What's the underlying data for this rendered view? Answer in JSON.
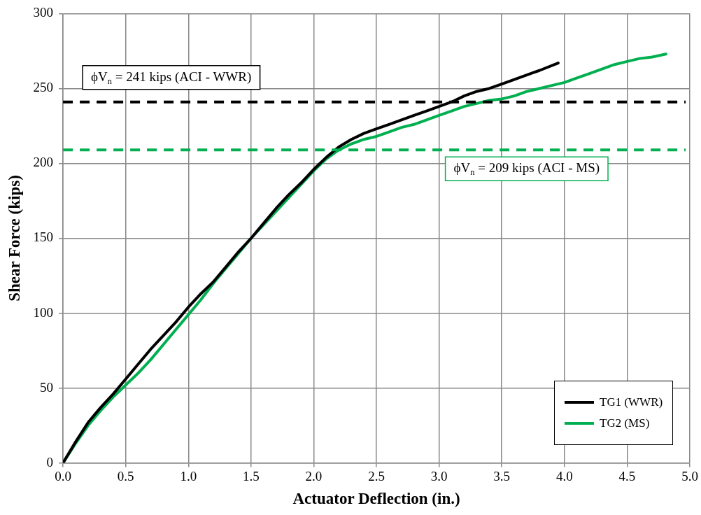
{
  "chart_data": {
    "type": "line",
    "xlabel": "Actuator Deflection (in.)",
    "ylabel": "Shear Force (kips)",
    "xlim": [
      0,
      5
    ],
    "xticks": [
      {
        "value": 0,
        "label": "0.0"
      },
      {
        "value": 0.5,
        "label": "0.5"
      },
      {
        "value": 1,
        "label": "1.0"
      },
      {
        "value": 1.5,
        "label": "1.5"
      },
      {
        "value": 2,
        "label": "2.0"
      },
      {
        "value": 2.5,
        "label": "2.5"
      },
      {
        "value": 3,
        "label": "3.0"
      },
      {
        "value": 3.5,
        "label": "3.5"
      },
      {
        "value": 4,
        "label": "4.0"
      },
      {
        "value": 4.5,
        "label": "4.5"
      },
      {
        "value": 5,
        "label": "5.0"
      }
    ],
    "ylim": [
      0,
      300
    ],
    "yticks": [
      0,
      50,
      100,
      150,
      200,
      250,
      300
    ],
    "grid": true,
    "legend": "bottom right",
    "marker": "none",
    "line_style": "solid",
    "series": [
      {
        "name": "TG1 (WWR)",
        "color": "#000000",
        "x": [
          0,
          0.1,
          0.2,
          0.3,
          0.4,
          0.5,
          0.6,
          0.7,
          0.8,
          0.9,
          1.0,
          1.1,
          1.2,
          1.3,
          1.4,
          1.5,
          1.6,
          1.7,
          1.8,
          1.9,
          2.0,
          2.1,
          2.2,
          2.3,
          2.4,
          2.5,
          2.6,
          2.7,
          2.8,
          2.9,
          3.0,
          3.1,
          3.2,
          3.3,
          3.4,
          3.5,
          3.6,
          3.7,
          3.8,
          3.95
        ],
        "values": [
          0,
          14,
          27,
          37,
          46,
          56,
          66,
          76,
          85,
          94,
          104,
          113,
          121,
          131,
          141,
          150,
          160,
          170,
          179,
          187,
          196,
          204,
          211,
          216,
          220,
          223,
          226,
          229,
          232,
          235,
          238,
          241,
          245,
          248,
          250,
          253,
          256,
          259,
          262,
          267
        ]
      },
      {
        "name": "TG2 (MS)",
        "color": "#00b050",
        "x": [
          0,
          0.1,
          0.2,
          0.3,
          0.4,
          0.5,
          0.6,
          0.7,
          0.8,
          0.9,
          1.0,
          1.1,
          1.2,
          1.3,
          1.4,
          1.5,
          1.6,
          1.7,
          1.8,
          1.9,
          2.0,
          2.1,
          2.2,
          2.3,
          2.4,
          2.5,
          2.6,
          2.7,
          2.8,
          2.9,
          3.0,
          3.1,
          3.2,
          3.3,
          3.4,
          3.5,
          3.6,
          3.7,
          3.8,
          3.9,
          4.0,
          4.1,
          4.2,
          4.3,
          4.4,
          4.5,
          4.6,
          4.7,
          4.81
        ],
        "values": [
          0,
          13,
          25,
          35,
          44,
          52,
          60,
          69,
          79,
          89,
          99,
          109,
          120,
          130,
          140,
          150,
          159,
          168,
          177,
          186,
          195,
          203,
          209,
          213,
          216,
          218,
          221,
          224,
          226,
          229,
          232,
          235,
          238,
          240,
          242,
          243,
          245,
          248,
          250,
          252,
          254,
          257,
          260,
          263,
          266,
          268,
          270,
          271,
          273
        ]
      }
    ],
    "ref_lines": [
      {
        "axis": "y",
        "value": 241,
        "label": "ϕV$_{n}$ = 241 kips (ACI - WWR)",
        "color": "#000000",
        "line_style": "dashed"
      },
      {
        "axis": "y",
        "value": 209,
        "label": "ϕV$_{n}$ = 209 kips (ACI - MS)",
        "color": "#00b050",
        "line_style": "dashed"
      }
    ]
  }
}
